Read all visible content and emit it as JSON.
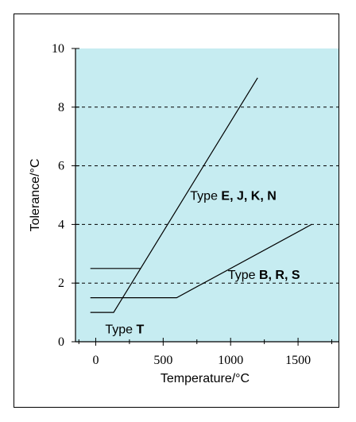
{
  "chart_data": {
    "type": "line",
    "xlabel": "Temperature/°C",
    "ylabel": "Tolerance/°C",
    "xlim": [
      -150,
      1800
    ],
    "ylim": [
      0,
      10
    ],
    "x_ticks": [
      0,
      500,
      1000,
      1500
    ],
    "y_ticks": [
      0,
      2,
      4,
      6,
      8,
      10
    ],
    "x_tick_labels": [
      "0",
      "500",
      "1000",
      "1500"
    ],
    "y_tick_labels": [
      "0",
      "2",
      "4",
      "6",
      "8",
      "10"
    ],
    "grid": "horizontal dashed",
    "background": "#c6ecf1",
    "series": [
      {
        "points": [
          [
            -40,
            2.5
          ],
          [
            333,
            2.5
          ]
        ]
      },
      {
        "points": [
          [
            -40,
            1.5
          ],
          [
            600,
            1.5
          ],
          [
            1600,
            4.0
          ]
        ]
      },
      {
        "points": [
          [
            -40,
            1.0
          ],
          [
            133,
            1.0
          ],
          [
            1200,
            9.0
          ]
        ]
      }
    ],
    "annotations": [
      {
        "prefix": "Type ",
        "bold": "E, J, K, N",
        "x": 700,
        "y": 5.0
      },
      {
        "prefix": "Type ",
        "bold": "B, R, S",
        "x": 980,
        "y": 2.3
      },
      {
        "prefix": "Type ",
        "bold": "T",
        "x": 70,
        "y": 0.45
      }
    ]
  }
}
